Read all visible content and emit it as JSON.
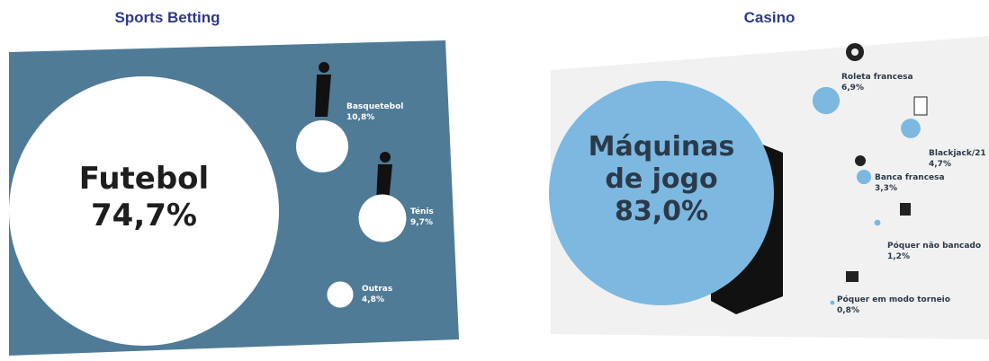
{
  "chart_data": [
    {
      "type": "bubble",
      "title": "Sports Betting",
      "color": "#ffffff",
      "label_color": "#ffffff",
      "main_label_color": "#1e1e1e",
      "background": "#4f7b97",
      "categories": [
        "Futebol",
        "Basquetebol",
        "Ténis",
        "Outras"
      ],
      "values": [
        74.7,
        10.8,
        9.7,
        4.8
      ],
      "value_labels": [
        "74,7%",
        "10,8%",
        "9,7%",
        "4,8%"
      ]
    },
    {
      "type": "bubble",
      "title": "Casino",
      "color": "#7cb8e0",
      "label_color": "#2b3a4a",
      "main_label_color": "#2b3a4a",
      "background": "#f1f1f1",
      "categories": [
        "Máquinas de jogo",
        "Roleta francesa",
        "Blackjack/21",
        "Banca francesa",
        "Póquer não bancado",
        "Póquer em modo torneio"
      ],
      "values": [
        83.0,
        6.9,
        4.7,
        3.3,
        1.2,
        0.8
      ],
      "value_labels": [
        "83,0%",
        "6,9%",
        "4,7%",
        "3,3%",
        "1,2%",
        "0,8%"
      ]
    }
  ]
}
